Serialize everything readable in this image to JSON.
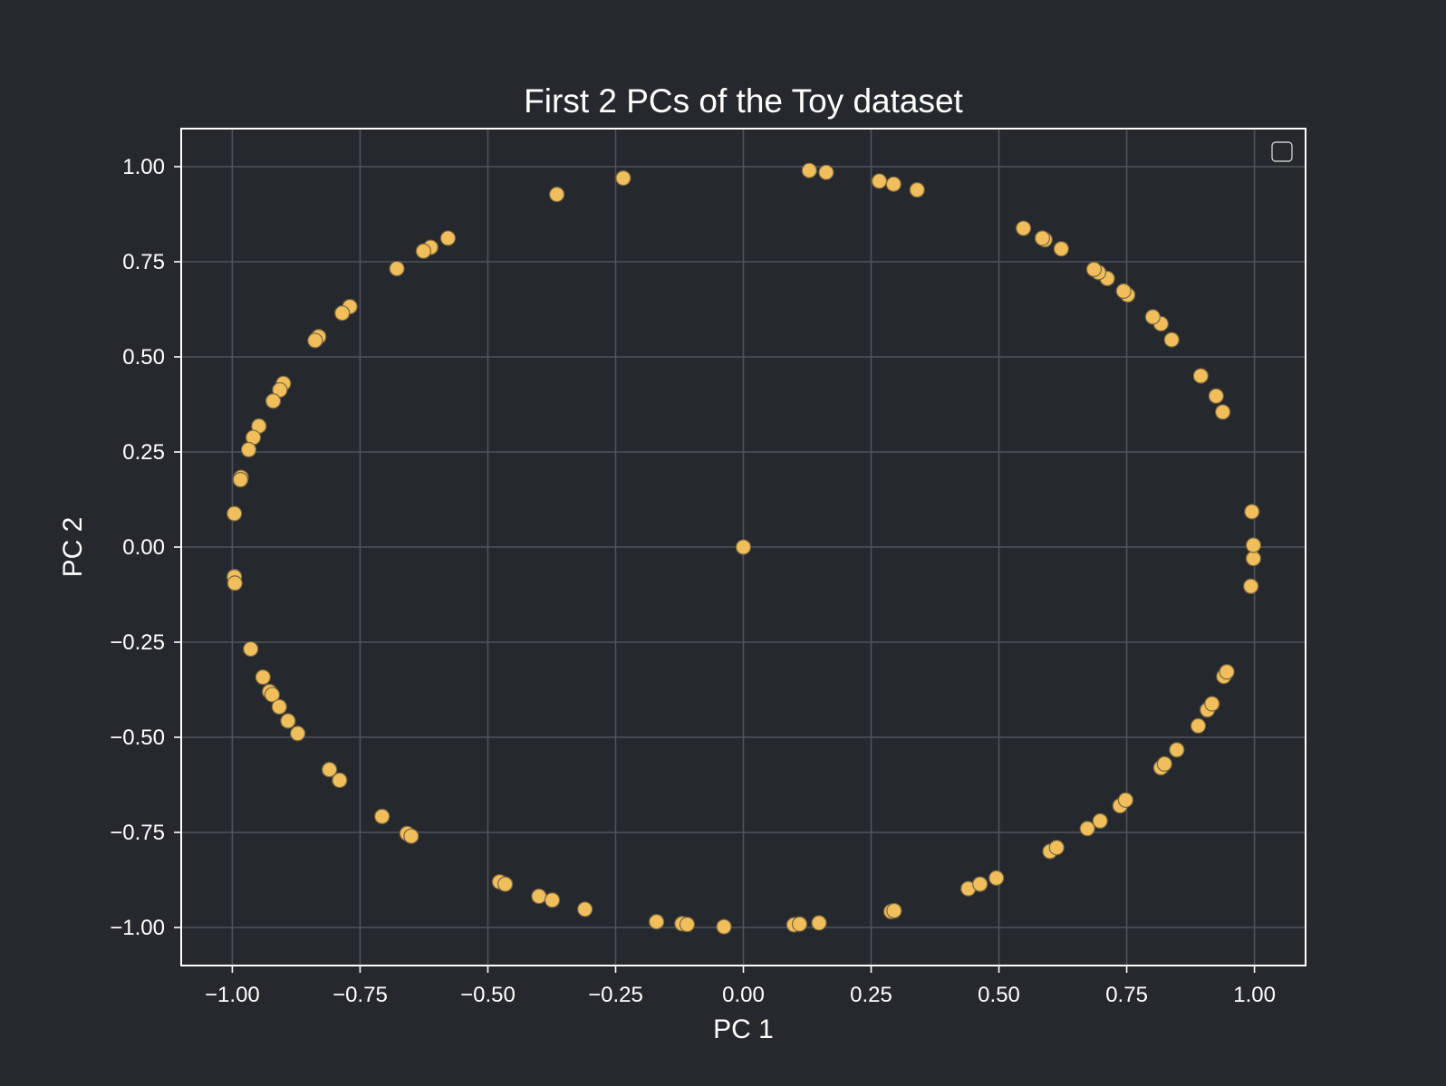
{
  "chart_data": {
    "type": "scatter",
    "title": "First 2 PCs of the Toy dataset",
    "xlabel": "PC 1",
    "ylabel": "PC 2",
    "xlim": [
      -1.1,
      1.1
    ],
    "ylim": [
      -1.1,
      1.1
    ],
    "xticks": [
      -1.0,
      -0.75,
      -0.5,
      -0.25,
      0.0,
      0.25,
      0.5,
      0.75,
      1.0
    ],
    "xtick_labels": [
      "−1.00",
      "−0.75",
      "−0.50",
      "−0.25",
      "0.00",
      "0.25",
      "0.50",
      "0.75",
      "1.00"
    ],
    "yticks": [
      1.0,
      0.75,
      0.5,
      0.25,
      0.0,
      -0.25,
      -0.5,
      -0.75,
      -1.0
    ],
    "ytick_labels": [
      "1.00",
      "0.75",
      "0.50",
      "0.25",
      "0.00",
      "−0.25",
      "−0.50",
      "−0.75",
      "−1.00"
    ],
    "grid": true,
    "legend": "top-right (empty)",
    "colors": {
      "background": "#25292e",
      "point_fill": "#f0be5a",
      "point_edge": "#7a6640",
      "grid": "#4f545a",
      "axes_frame": "#ffffff",
      "text": "#ffffff"
    },
    "series": [
      {
        "points": [
          [
            0.0,
            0.0
          ],
          [
            -0.365,
            0.927
          ],
          [
            -0.235,
            0.97
          ],
          [
            0.129,
            0.99
          ],
          [
            0.162,
            0.985
          ],
          [
            0.266,
            0.962
          ],
          [
            0.294,
            0.954
          ],
          [
            0.34,
            0.939
          ],
          [
            -0.578,
            0.812
          ],
          [
            -0.612,
            0.788
          ],
          [
            -0.626,
            0.778
          ],
          [
            -0.678,
            0.732
          ],
          [
            -0.77,
            0.632
          ],
          [
            -0.785,
            0.615
          ],
          [
            -0.831,
            0.553
          ],
          [
            -0.838,
            0.543
          ],
          [
            -0.9,
            0.43
          ],
          [
            -0.907,
            0.413
          ],
          [
            -0.92,
            0.384
          ],
          [
            -0.948,
            0.318
          ],
          [
            -0.959,
            0.288
          ],
          [
            -0.968,
            0.256
          ],
          [
            -0.983,
            0.183
          ],
          [
            -0.984,
            0.177
          ],
          [
            -0.996,
            0.088
          ],
          [
            -0.996,
            -0.078
          ],
          [
            -0.995,
            -0.095
          ],
          [
            -0.964,
            -0.268
          ],
          [
            -0.94,
            -0.342
          ],
          [
            -0.927,
            -0.38
          ],
          [
            -0.922,
            -0.388
          ],
          [
            -0.908,
            -0.42
          ],
          [
            -0.891,
            -0.457
          ],
          [
            -0.872,
            -0.49
          ],
          [
            -0.81,
            -0.585
          ],
          [
            -0.79,
            -0.613
          ],
          [
            -0.707,
            -0.708
          ],
          [
            -0.658,
            -0.753
          ],
          [
            -0.65,
            -0.76
          ],
          [
            -0.477,
            -0.88
          ],
          [
            -0.466,
            -0.886
          ],
          [
            -0.4,
            -0.918
          ],
          [
            -0.374,
            -0.928
          ],
          [
            -0.31,
            -0.952
          ],
          [
            -0.17,
            -0.985
          ],
          [
            -0.12,
            -0.99
          ],
          [
            -0.11,
            -0.992
          ],
          [
            -0.038,
            -0.998
          ],
          [
            0.099,
            -0.993
          ],
          [
            0.11,
            -0.991
          ],
          [
            0.148,
            -0.988
          ],
          [
            0.289,
            -0.958
          ],
          [
            0.295,
            -0.956
          ],
          [
            0.44,
            -0.898
          ],
          [
            0.463,
            -0.886
          ],
          [
            0.495,
            -0.87
          ],
          [
            0.6,
            -0.8
          ],
          [
            0.613,
            -0.79
          ],
          [
            0.673,
            -0.74
          ],
          [
            0.698,
            -0.72
          ],
          [
            0.737,
            -0.68
          ],
          [
            0.748,
            -0.665
          ],
          [
            0.817,
            -0.58
          ],
          [
            0.824,
            -0.57
          ],
          [
            0.848,
            -0.533
          ],
          [
            0.89,
            -0.47
          ],
          [
            0.908,
            -0.428
          ],
          [
            0.917,
            -0.412
          ],
          [
            0.94,
            -0.34
          ],
          [
            0.946,
            -0.328
          ],
          [
            0.993,
            -0.103
          ],
          [
            0.998,
            -0.03
          ],
          [
            0.998,
            0.005
          ],
          [
            0.995,
            0.093
          ],
          [
            0.938,
            0.355
          ],
          [
            0.925,
            0.397
          ],
          [
            0.895,
            0.45
          ],
          [
            0.838,
            0.545
          ],
          [
            0.817,
            0.587
          ],
          [
            0.801,
            0.605
          ],
          [
            0.752,
            0.663
          ],
          [
            0.744,
            0.673
          ],
          [
            0.712,
            0.706
          ],
          [
            0.695,
            0.722
          ],
          [
            0.686,
            0.73
          ],
          [
            0.622,
            0.784
          ],
          [
            0.59,
            0.808
          ],
          [
            0.585,
            0.812
          ],
          [
            0.548,
            0.838
          ]
        ]
      }
    ]
  }
}
